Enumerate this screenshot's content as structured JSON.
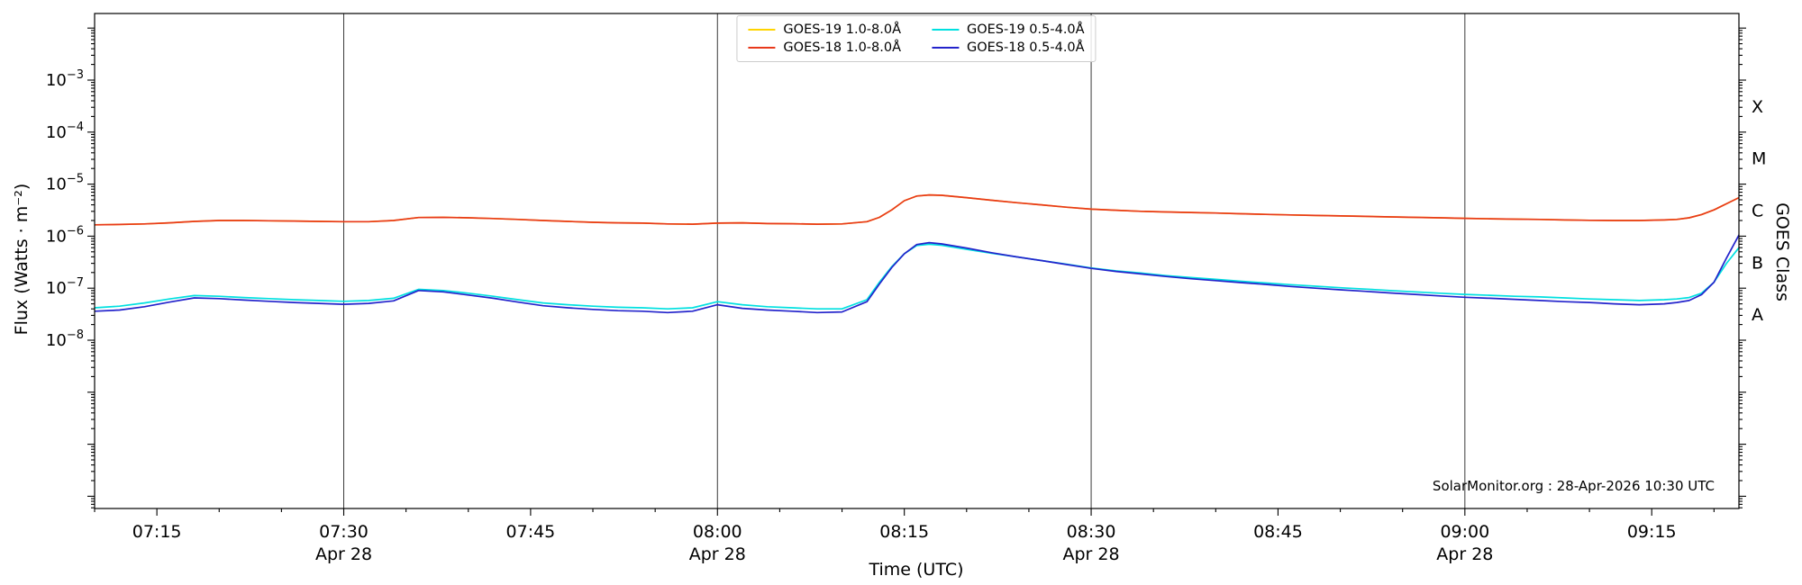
{
  "accent_colors": {
    "background": "#ffffff",
    "axis": "#000000",
    "hour_line": "#3a3a3a"
  },
  "chart_data": {
    "type": "line",
    "title": "",
    "xlabel": "Time (UTC)",
    "ylabel": "Flux (Watts · m⁻²)",
    "ylabel_right": "GOES Class",
    "credit": "SolarMonitor.org : 28-Apr-2026 10:30 UTC",
    "x_range": [
      "07:10",
      "09:22"
    ],
    "x_major_ticks": [
      "07:15",
      "07:30",
      "07:45",
      "08:00",
      "08:15",
      "08:30",
      "08:45",
      "09:00",
      "09:15"
    ],
    "x_minor_tick_minutes": 5,
    "x_day_labels": [
      {
        "tick": "07:30",
        "label": "Apr 28"
      },
      {
        "tick": "08:00",
        "label": "Apr 28"
      },
      {
        "tick": "08:30",
        "label": "Apr 28"
      },
      {
        "tick": "09:00",
        "label": "Apr 28"
      }
    ],
    "vlines": [
      "07:30",
      "08:00",
      "08:30",
      "09:00"
    ],
    "ylim": [
      1e-11,
      0.02
    ],
    "y_scale": "log",
    "y_tick_exponents": [
      -3,
      -4,
      -5,
      -6,
      -7,
      -8
    ],
    "grid": false,
    "legend_position": "top-center",
    "goes_classes": [
      {
        "label": "X",
        "log_center": -3.5
      },
      {
        "label": "M",
        "log_center": -4.5
      },
      {
        "label": "C",
        "log_center": -5.5
      },
      {
        "label": "B",
        "log_center": -6.5
      },
      {
        "label": "A",
        "log_center": -7.5
      }
    ],
    "legend": {
      "entries": [
        {
          "label": "GOES-19 1.0-8.0Å",
          "color": "#ffd400"
        },
        {
          "label": "GOES-18 1.0-8.0Å",
          "color": "#e8391b"
        },
        {
          "label": "GOES-19 0.5-4.0Å",
          "color": "#00e0e0"
        },
        {
          "label": "GOES-18 0.5-4.0Å",
          "color": "#2323cb"
        }
      ]
    },
    "x": [
      "07:10",
      "07:12",
      "07:14",
      "07:16",
      "07:18",
      "07:20",
      "07:22",
      "07:24",
      "07:26",
      "07:28",
      "07:30",
      "07:32",
      "07:34",
      "07:36",
      "07:38",
      "07:40",
      "07:42",
      "07:44",
      "07:46",
      "07:48",
      "07:50",
      "07:52",
      "07:54",
      "07:56",
      "07:58",
      "08:00",
      "08:02",
      "08:04",
      "08:06",
      "08:08",
      "08:10",
      "08:12",
      "08:13",
      "08:14",
      "08:15",
      "08:16",
      "08:17",
      "08:18",
      "08:20",
      "08:22",
      "08:24",
      "08:26",
      "08:28",
      "08:30",
      "08:32",
      "08:34",
      "08:36",
      "08:38",
      "08:40",
      "08:42",
      "08:44",
      "08:46",
      "08:48",
      "08:50",
      "08:52",
      "08:54",
      "08:56",
      "08:58",
      "09:00",
      "09:02",
      "09:04",
      "09:06",
      "09:08",
      "09:10",
      "09:12",
      "09:14",
      "09:16",
      "09:17",
      "09:18",
      "09:19",
      "09:20",
      "09:21",
      "09:22"
    ],
    "series": [
      {
        "name": "GOES-19 1.0-8.0Å",
        "color": "#ffd400",
        "values": [
          1.65e-06,
          1.68e-06,
          1.72e-06,
          1.8e-06,
          1.92e-06,
          2e-06,
          2e-06,
          1.98e-06,
          1.95e-06,
          1.92e-06,
          1.9e-06,
          1.9e-06,
          2e-06,
          2.28e-06,
          2.3e-06,
          2.25e-06,
          2.18e-06,
          2.1e-06,
          2e-06,
          1.92e-06,
          1.85e-06,
          1.8e-06,
          1.78e-06,
          1.72e-06,
          1.7e-06,
          1.78e-06,
          1.8e-06,
          1.75e-06,
          1.73e-06,
          1.7e-06,
          1.72e-06,
          1.9e-06,
          2.3e-06,
          3.2e-06,
          4.8e-06,
          5.9e-06,
          6.2e-06,
          6.1e-06,
          5.5e-06,
          4.9e-06,
          4.4e-06,
          4e-06,
          3.6e-06,
          3.3e-06,
          3.15e-06,
          3e-06,
          2.92e-06,
          2.85e-06,
          2.78e-06,
          2.7e-06,
          2.62e-06,
          2.56e-06,
          2.5e-06,
          2.45e-06,
          2.4e-06,
          2.35e-06,
          2.3e-06,
          2.25e-06,
          2.2e-06,
          2.16e-06,
          2.12e-06,
          2.1e-06,
          2.05e-06,
          2.02e-06,
          2e-06,
          2e-06,
          2.05e-06,
          2.1e-06,
          2.25e-06,
          2.6e-06,
          3.2e-06,
          4.2e-06,
          5.5e-06
        ]
      },
      {
        "name": "GOES-18 1.0-8.0Å",
        "color": "#e8391b",
        "values": [
          1.65e-06,
          1.68e-06,
          1.72e-06,
          1.8e-06,
          1.92e-06,
          2e-06,
          2e-06,
          1.98e-06,
          1.95e-06,
          1.92e-06,
          1.9e-06,
          1.9e-06,
          2e-06,
          2.28e-06,
          2.3e-06,
          2.25e-06,
          2.18e-06,
          2.1e-06,
          2e-06,
          1.92e-06,
          1.85e-06,
          1.8e-06,
          1.78e-06,
          1.72e-06,
          1.7e-06,
          1.78e-06,
          1.8e-06,
          1.75e-06,
          1.73e-06,
          1.7e-06,
          1.72e-06,
          1.9e-06,
          2.3e-06,
          3.2e-06,
          4.8e-06,
          5.9e-06,
          6.2e-06,
          6.1e-06,
          5.5e-06,
          4.9e-06,
          4.4e-06,
          4e-06,
          3.6e-06,
          3.3e-06,
          3.15e-06,
          3e-06,
          2.92e-06,
          2.85e-06,
          2.78e-06,
          2.7e-06,
          2.62e-06,
          2.56e-06,
          2.5e-06,
          2.45e-06,
          2.4e-06,
          2.35e-06,
          2.3e-06,
          2.25e-06,
          2.2e-06,
          2.16e-06,
          2.12e-06,
          2.1e-06,
          2.05e-06,
          2.02e-06,
          2e-06,
          2e-06,
          2.05e-06,
          2.1e-06,
          2.25e-06,
          2.6e-06,
          3.2e-06,
          4.2e-06,
          5.5e-06
        ]
      },
      {
        "name": "GOES-19 0.5-4.0Å",
        "color": "#00e0e0",
        "values": [
          4.2e-08,
          4.5e-08,
          5.2e-08,
          6.2e-08,
          7.2e-08,
          7e-08,
          6.6e-08,
          6.3e-08,
          6e-08,
          5.8e-08,
          5.6e-08,
          5.8e-08,
          6.4e-08,
          9.5e-08,
          9e-08,
          8e-08,
          7e-08,
          6e-08,
          5.2e-08,
          4.8e-08,
          4.5e-08,
          4.3e-08,
          4.2e-08,
          4e-08,
          4.2e-08,
          5.5e-08,
          4.8e-08,
          4.4e-08,
          4.2e-08,
          4e-08,
          4e-08,
          6e-08,
          1.3e-07,
          2.6e-07,
          4.6e-07,
          6.6e-07,
          7e-07,
          6.7e-07,
          5.6e-07,
          4.7e-07,
          4e-07,
          3.4e-07,
          2.9e-07,
          2.45e-07,
          2.15e-07,
          1.95e-07,
          1.75e-07,
          1.6e-07,
          1.48e-07,
          1.36e-07,
          1.26e-07,
          1.17e-07,
          1.09e-07,
          1.02e-07,
          9.6e-08,
          9e-08,
          8.5e-08,
          8e-08,
          7.6e-08,
          7.3e-08,
          7e-08,
          6.8e-08,
          6.5e-08,
          6.2e-08,
          6e-08,
          5.8e-08,
          6e-08,
          6.2e-08,
          6.6e-08,
          8e-08,
          1.3e-07,
          3e-07,
          6e-07
        ]
      },
      {
        "name": "GOES-18 0.5-4.0Å",
        "color": "#2323cb",
        "values": [
          3.6e-08,
          3.8e-08,
          4.4e-08,
          5.4e-08,
          6.5e-08,
          6.3e-08,
          5.9e-08,
          5.6e-08,
          5.3e-08,
          5.1e-08,
          4.9e-08,
          5.1e-08,
          5.7e-08,
          9e-08,
          8.5e-08,
          7.4e-08,
          6.4e-08,
          5.4e-08,
          4.6e-08,
          4.2e-08,
          3.9e-08,
          3.7e-08,
          3.6e-08,
          3.4e-08,
          3.6e-08,
          4.8e-08,
          4.1e-08,
          3.8e-08,
          3.6e-08,
          3.4e-08,
          3.5e-08,
          5.5e-08,
          1.2e-07,
          2.5e-07,
          4.6e-07,
          6.9e-07,
          7.5e-07,
          7.1e-07,
          5.9e-07,
          4.8e-07,
          4e-07,
          3.4e-07,
          2.85e-07,
          2.4e-07,
          2.1e-07,
          1.88e-07,
          1.68e-07,
          1.52e-07,
          1.4e-07,
          1.28e-07,
          1.18e-07,
          1.08e-07,
          1e-07,
          9.3e-08,
          8.7e-08,
          8.1e-08,
          7.6e-08,
          7.1e-08,
          6.7e-08,
          6.4e-08,
          6.1e-08,
          5.8e-08,
          5.5e-08,
          5.3e-08,
          5e-08,
          4.8e-08,
          5e-08,
          5.3e-08,
          5.8e-08,
          7.5e-08,
          1.3e-07,
          3.8e-07,
          1.05e-06
        ]
      }
    ]
  }
}
